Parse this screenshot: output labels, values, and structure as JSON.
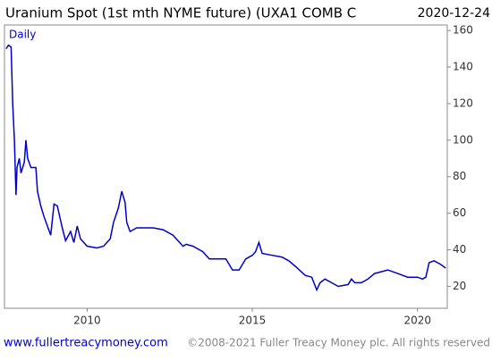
{
  "chart_data": {
    "type": "line",
    "title": "Uranium Spot (1st mth NYME future) (UXA1 COMB C",
    "date": "2020-12-24",
    "label": "Daily",
    "footer_left": "www.fullertreacymoney.com",
    "footer_right": "©2008-2021 Fuller Treacy Money plc. All rights reserved",
    "xlim": [
      2007.5,
      2020.9
    ],
    "xticks": [
      2010,
      2015,
      2020
    ],
    "ylim": [
      8,
      163
    ],
    "yticks": [
      20,
      40,
      60,
      80,
      100,
      120,
      140,
      160
    ],
    "series": [
      {
        "name": "Daily",
        "color": "#0000cc",
        "x": [
          2007.55,
          2007.62,
          2007.7,
          2007.75,
          2007.8,
          2007.85,
          2007.88,
          2007.95,
          2008.0,
          2008.1,
          2008.15,
          2008.2,
          2008.3,
          2008.45,
          2008.5,
          2008.6,
          2008.7,
          2008.8,
          2008.9,
          2009.0,
          2009.1,
          2009.25,
          2009.35,
          2009.5,
          2009.6,
          2009.7,
          2009.8,
          2009.9,
          2010.0,
          2010.3,
          2010.5,
          2010.7,
          2010.8,
          2010.95,
          2011.05,
          2011.15,
          2011.2,
          2011.3,
          2011.5,
          2011.8,
          2012.0,
          2012.3,
          2012.6,
          2012.8,
          2012.9,
          2013.0,
          2013.2,
          2013.5,
          2013.7,
          2013.9,
          2014.2,
          2014.4,
          2014.6,
          2014.8,
          2015.0,
          2015.1,
          2015.2,
          2015.3,
          2015.6,
          2015.9,
          2016.1,
          2016.3,
          2016.6,
          2016.8,
          2016.95,
          2017.05,
          2017.2,
          2017.4,
          2017.6,
          2017.9,
          2018.0,
          2018.1,
          2018.3,
          2018.5,
          2018.7,
          2018.9,
          2019.1,
          2019.4,
          2019.7,
          2020.0,
          2020.15,
          2020.25,
          2020.35,
          2020.5,
          2020.7,
          2020.85
        ],
        "values": [
          150,
          152,
          151,
          120,
          100,
          70,
          85,
          90,
          82,
          88,
          100,
          90,
          85,
          85,
          72,
          64,
          58,
          53,
          48,
          65,
          64,
          52,
          45,
          50,
          44,
          53,
          46,
          44,
          42,
          41,
          42,
          46,
          55,
          63,
          72,
          66,
          55,
          50,
          52,
          52,
          52,
          51,
          48,
          44,
          42,
          43,
          42,
          39,
          35,
          35,
          35,
          29,
          29,
          35,
          37,
          39,
          44,
          38,
          37,
          36,
          34,
          31,
          26,
          25,
          18,
          22,
          24,
          22,
          20,
          21,
          24,
          22,
          22,
          24,
          27,
          28,
          29,
          27,
          25,
          25,
          24,
          25,
          33,
          34,
          32,
          30
        ]
      }
    ]
  }
}
